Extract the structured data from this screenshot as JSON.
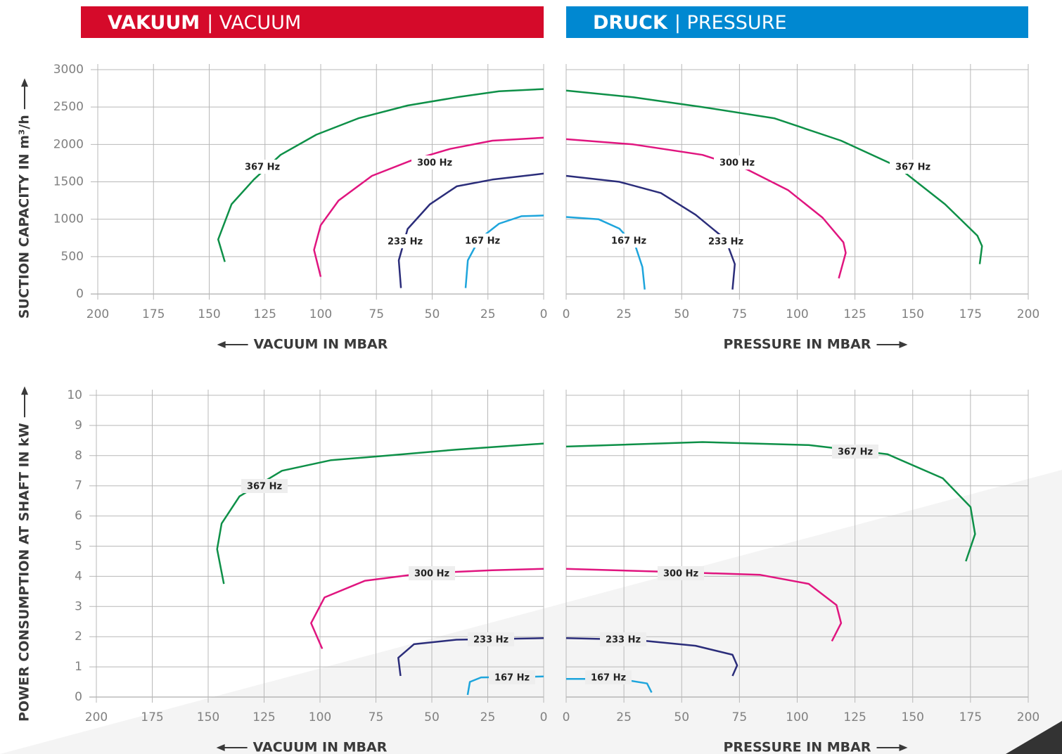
{
  "headers": [
    {
      "bold": "VAKUUM",
      "light": "| VACUUM",
      "color": "#d50a2a"
    },
    {
      "bold": "DRUCK",
      "light": "| PRESSURE",
      "color": "#0088d1"
    }
  ],
  "chart_data": [
    {
      "type": "line",
      "y_label": "SUCTION CAPACITY IN m³/h",
      "x_label": "VACUUM IN MBAR",
      "xlim": [
        200,
        0
      ],
      "xticks": [
        200,
        175,
        150,
        125,
        100,
        75,
        50,
        25,
        0
      ],
      "ylim": [
        0,
        3000
      ],
      "yticks": [
        0,
        500,
        1000,
        1500,
        2000,
        2500,
        3000
      ],
      "grid": true,
      "series": [
        {
          "name": "367 Hz",
          "color": "#0e9048",
          "x": [
            143,
            146,
            140,
            130,
            118,
            102,
            83,
            61,
            39,
            20,
            0
          ],
          "values": [
            430,
            730,
            1200,
            1530,
            1860,
            2130,
            2350,
            2520,
            2630,
            2710,
            2740
          ]
        },
        {
          "name": "300 Hz",
          "color": "#e0157f",
          "x": [
            100,
            103,
            100,
            92,
            77,
            59,
            42,
            23,
            0
          ],
          "values": [
            230,
            590,
            920,
            1250,
            1580,
            1790,
            1940,
            2050,
            2090
          ]
        },
        {
          "name": "233 Hz",
          "color": "#2b2d7a",
          "x": [
            64,
            65,
            61,
            51,
            39,
            23,
            0
          ],
          "values": [
            80,
            450,
            870,
            1200,
            1440,
            1530,
            1610
          ]
        },
        {
          "name": "167 Hz",
          "color": "#1ea5dc",
          "x": [
            35,
            34,
            29,
            20,
            10,
            0
          ],
          "values": [
            80,
            450,
            730,
            940,
            1040,
            1050
          ]
        }
      ]
    },
    {
      "type": "line",
      "x_label": "PRESSURE IN MBAR",
      "xlim": [
        0,
        200
      ],
      "xticks": [
        0,
        25,
        50,
        75,
        100,
        125,
        150,
        175,
        200
      ],
      "ylim": [
        0,
        3000
      ],
      "yticks": [
        0,
        500,
        1000,
        1500,
        2000,
        2500,
        3000
      ],
      "grid": true,
      "series": [
        {
          "name": "367 Hz",
          "color": "#0e9048",
          "x": [
            0,
            29,
            59,
            90,
            119,
            143,
            164,
            178,
            180,
            179
          ],
          "values": [
            2720,
            2630,
            2500,
            2350,
            2050,
            1710,
            1200,
            780,
            640,
            400
          ]
        },
        {
          "name": "300 Hz",
          "color": "#e0157f",
          "x": [
            0,
            29,
            59,
            78,
            96,
            111,
            120,
            121,
            118
          ],
          "values": [
            2070,
            2000,
            1860,
            1670,
            1390,
            1020,
            690,
            550,
            210
          ]
        },
        {
          "name": "233 Hz",
          "color": "#2b2d7a",
          "x": [
            0,
            23,
            41,
            56,
            69,
            73,
            72
          ],
          "values": [
            1580,
            1500,
            1350,
            1060,
            730,
            400,
            60
          ]
        },
        {
          "name": "167 Hz",
          "color": "#1ea5dc",
          "x": [
            0,
            14,
            23,
            30,
            33,
            34
          ],
          "values": [
            1030,
            1000,
            875,
            640,
            360,
            60
          ]
        }
      ]
    },
    {
      "type": "line",
      "y_label": "POWER CONSUMPTION AT SHAFT IN kW",
      "x_label": "VACUUM IN MBAR",
      "xlim": [
        200,
        0
      ],
      "xticks": [
        200,
        175,
        150,
        125,
        100,
        75,
        50,
        25,
        0
      ],
      "ylim": [
        0,
        10
      ],
      "yticks": [
        0,
        1,
        2,
        3,
        4,
        5,
        6,
        7,
        8,
        9,
        10
      ],
      "grid": true,
      "series": [
        {
          "name": "367 Hz",
          "color": "#0e9048",
          "x": [
            143,
            146,
            144,
            136,
            117,
            95,
            70,
            39,
            0
          ],
          "values": [
            3.75,
            4.9,
            5.75,
            6.65,
            7.5,
            7.85,
            8.0,
            8.2,
            8.4
          ]
        },
        {
          "name": "300 Hz",
          "color": "#e0157f",
          "x": [
            99,
            104,
            98,
            80,
            54,
            23,
            0
          ],
          "values": [
            1.6,
            2.45,
            3.3,
            3.85,
            4.1,
            4.2,
            4.25
          ]
        },
        {
          "name": "233 Hz",
          "color": "#2b2d7a",
          "x": [
            64,
            65,
            58,
            39,
            0
          ],
          "values": [
            0.7,
            1.3,
            1.75,
            1.9,
            1.95
          ]
        },
        {
          "name": "167 Hz",
          "color": "#1ea5dc",
          "x": [
            34,
            33,
            28,
            0
          ],
          "values": [
            0.07,
            0.5,
            0.65,
            0.68
          ]
        }
      ]
    },
    {
      "type": "line",
      "x_label": "PRESSURE IN MBAR",
      "xlim": [
        0,
        200
      ],
      "xticks": [
        0,
        25,
        50,
        75,
        100,
        125,
        150,
        175,
        200
      ],
      "ylim": [
        0,
        10
      ],
      "yticks": [
        0,
        1,
        2,
        3,
        4,
        5,
        6,
        7,
        8,
        9,
        10
      ],
      "grid": true,
      "series": [
        {
          "name": "367 Hz",
          "color": "#0e9048",
          "x": [
            0,
            59,
            105,
            139,
            163,
            175,
            177,
            173
          ],
          "values": [
            8.3,
            8.45,
            8.35,
            8.05,
            7.25,
            6.3,
            5.4,
            4.5
          ]
        },
        {
          "name": "300 Hz",
          "color": "#e0157f",
          "x": [
            0,
            44,
            84,
            105,
            117,
            119,
            115
          ],
          "values": [
            4.25,
            4.15,
            4.05,
            3.75,
            3.05,
            2.45,
            1.85
          ]
        },
        {
          "name": "233 Hz",
          "color": "#2b2d7a",
          "x": [
            0,
            29,
            56,
            72,
            74,
            72
          ],
          "values": [
            1.95,
            1.9,
            1.7,
            1.4,
            1.05,
            0.7
          ]
        },
        {
          "name": "167 Hz",
          "color": "#1ea5dc",
          "x": [
            0,
            23,
            35,
            37
          ],
          "values": [
            0.6,
            0.6,
            0.45,
            0.15
          ]
        }
      ]
    }
  ]
}
